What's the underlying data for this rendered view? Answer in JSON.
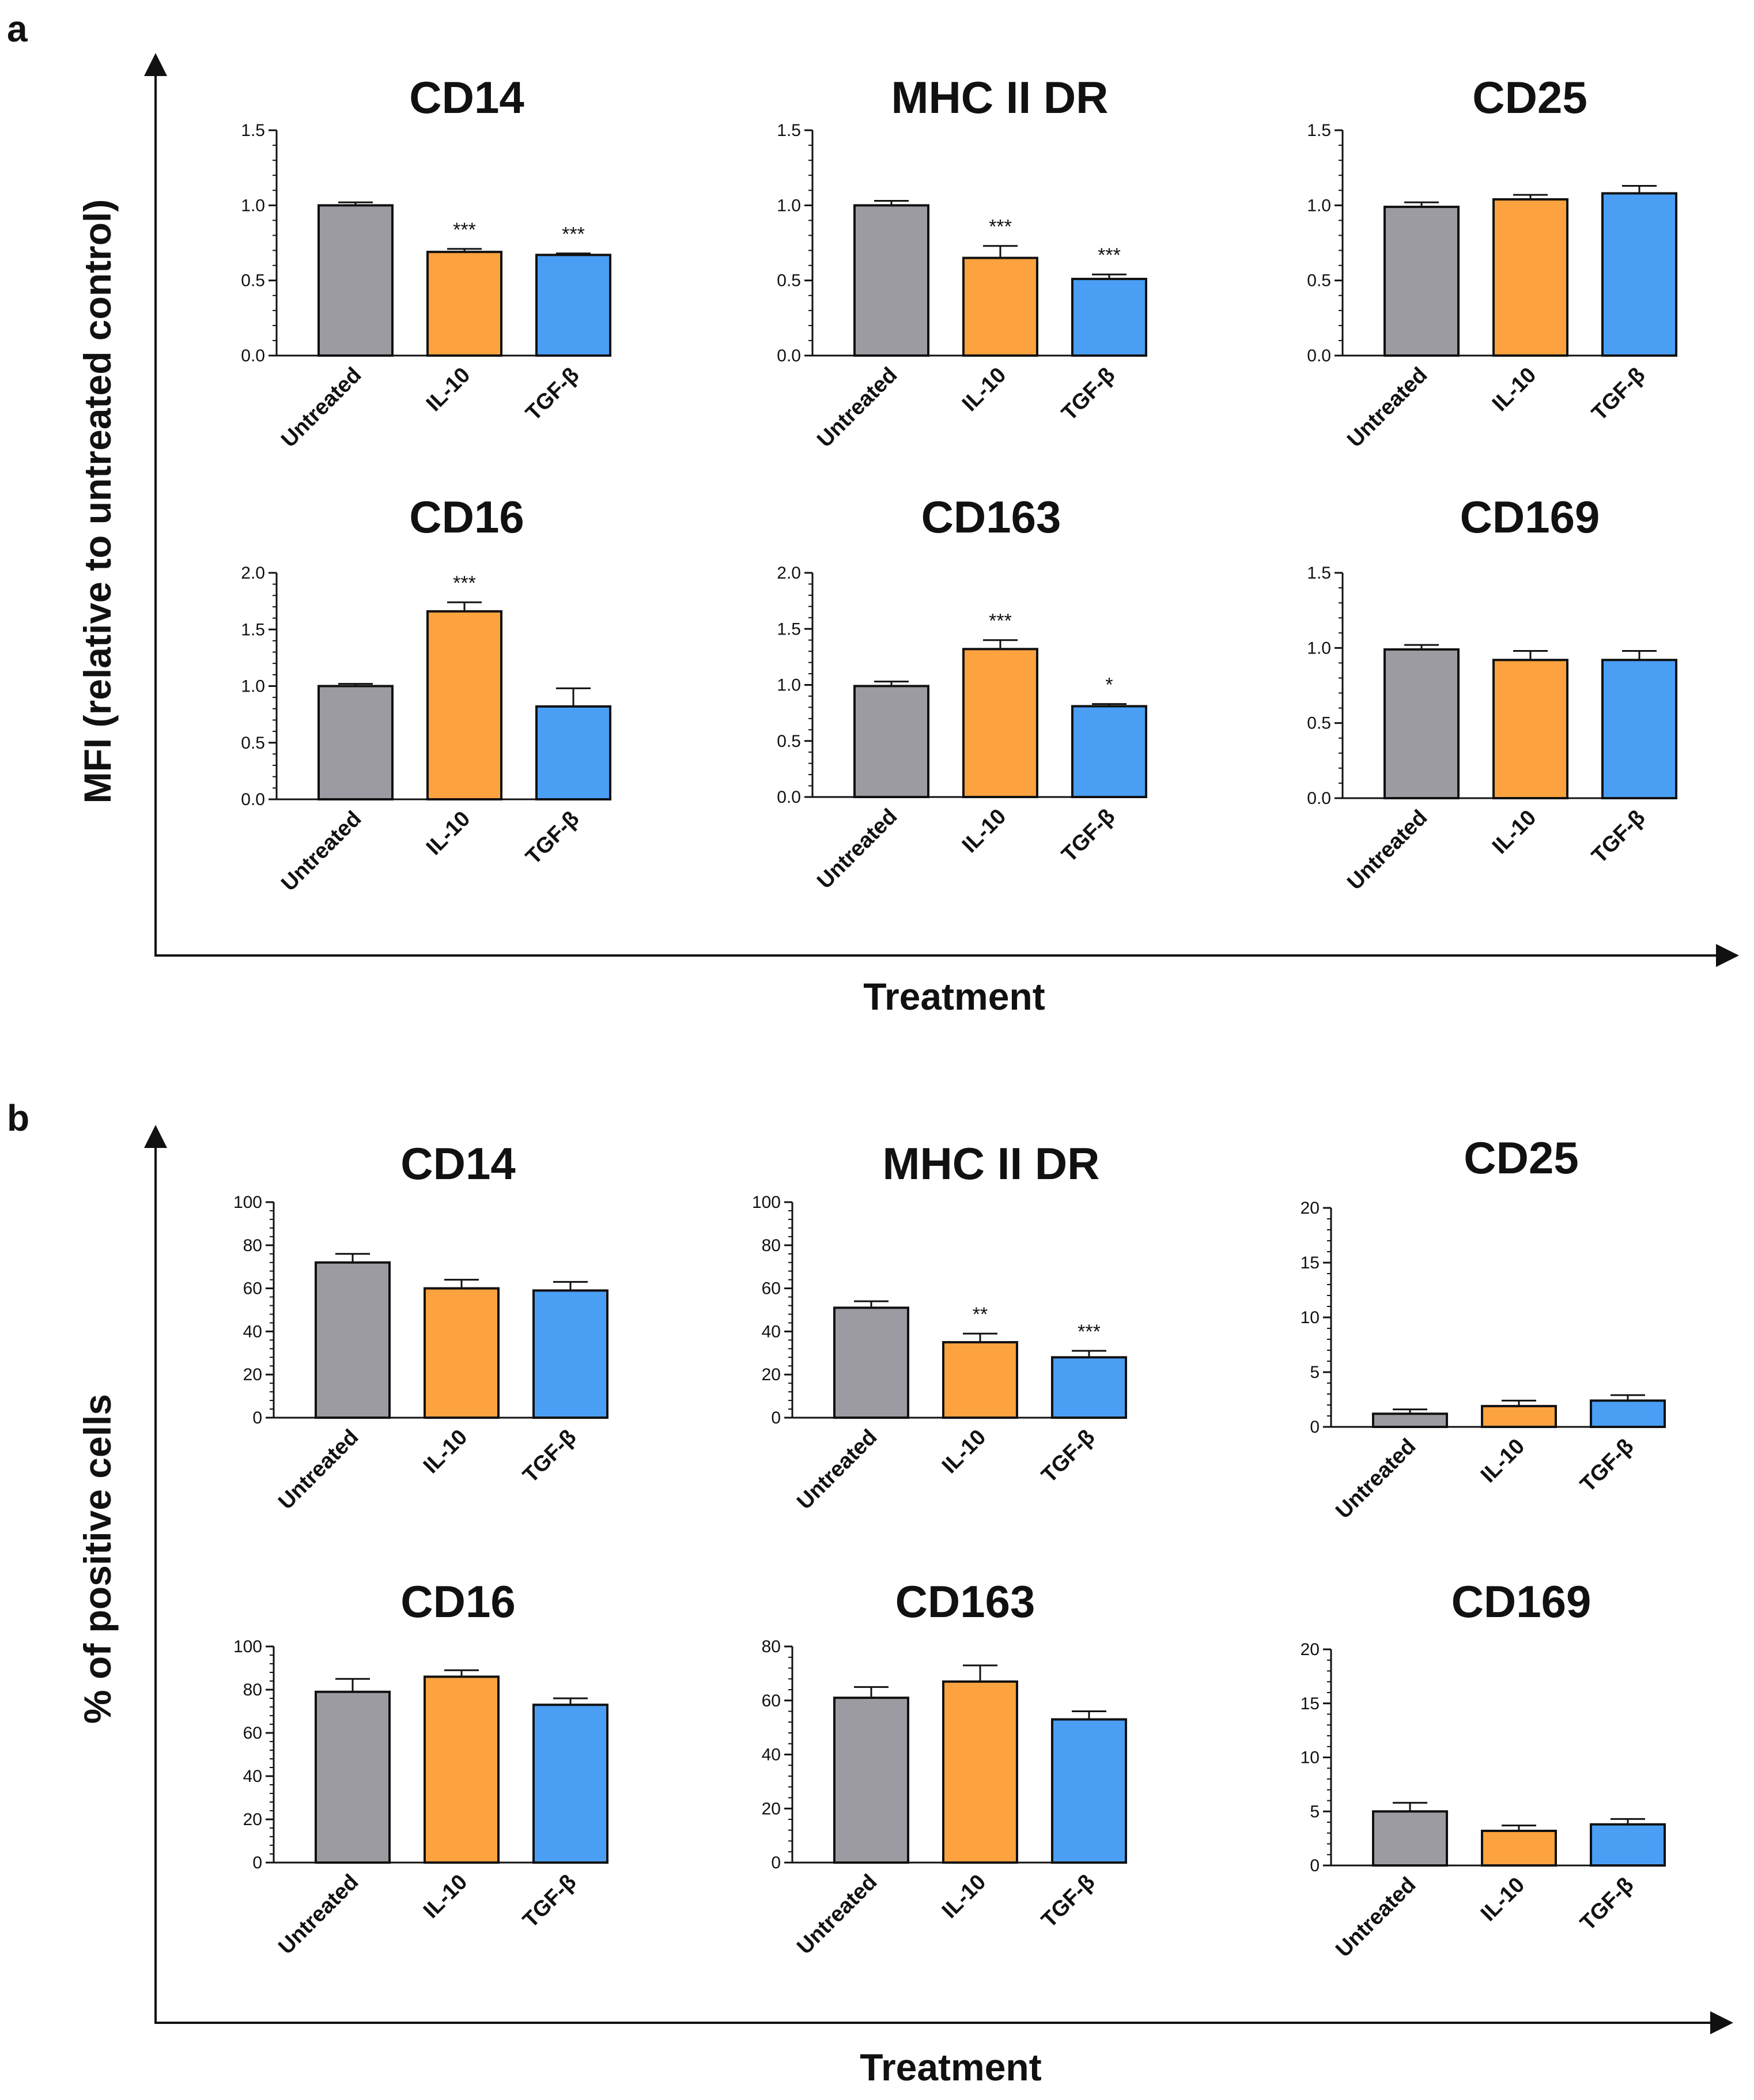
{
  "figure": {
    "panels": [
      {
        "letter": "a",
        "ylabel": "MFI (relative to untreated control)",
        "xlabel": "Treatment"
      },
      {
        "letter": "b",
        "ylabel": "% of positive cells",
        "xlabel": "Treatment"
      }
    ]
  },
  "colors": {
    "untreated": "#9c9ba2",
    "il10": "#fca23e",
    "tgfb": "#4a9ff5",
    "axis": "#111111"
  },
  "chart_data": [
    {
      "type": "bar",
      "panel": "a",
      "title": "CD14",
      "categories": [
        "Untreated",
        "IL-10",
        "TGF-β"
      ],
      "values": [
        1.0,
        0.69,
        0.67
      ],
      "errors": [
        0.02,
        0.02,
        0.01
      ],
      "significance": [
        "",
        "***",
        "***"
      ],
      "ylim": [
        0,
        1.5
      ],
      "yticks": [
        0,
        0.5,
        1.0,
        1.5
      ],
      "ytick_labels": [
        "0.0",
        "0.5",
        "1.0",
        "1.5"
      ],
      "xlabel": "Treatment",
      "ylabel": "MFI (relative to untreated control)"
    },
    {
      "type": "bar",
      "panel": "a",
      "title": "MHC II DR",
      "categories": [
        "Untreated",
        "IL-10",
        "TGF-β"
      ],
      "values": [
        1.0,
        0.65,
        0.51
      ],
      "errors": [
        0.03,
        0.08,
        0.03
      ],
      "significance": [
        "",
        "***",
        "***"
      ],
      "ylim": [
        0,
        1.5
      ],
      "yticks": [
        0,
        0.5,
        1.0,
        1.5
      ],
      "ytick_labels": [
        "0.0",
        "0.5",
        "1.0",
        "1.5"
      ],
      "xlabel": "Treatment",
      "ylabel": "MFI (relative to untreated control)"
    },
    {
      "type": "bar",
      "panel": "a",
      "title": "CD25",
      "categories": [
        "Untreated",
        "IL-10",
        "TGF-β"
      ],
      "values": [
        0.99,
        1.04,
        1.08
      ],
      "errors": [
        0.03,
        0.03,
        0.05
      ],
      "significance": [
        "",
        "",
        ""
      ],
      "ylim": [
        0,
        1.5
      ],
      "yticks": [
        0,
        0.5,
        1.0,
        1.5
      ],
      "ytick_labels": [
        "0.0",
        "0.5",
        "1.0",
        "1.5"
      ],
      "xlabel": "Treatment",
      "ylabel": "MFI (relative to untreated control)"
    },
    {
      "type": "bar",
      "panel": "a",
      "title": "CD16",
      "categories": [
        "Untreated",
        "IL-10",
        "TGF-β"
      ],
      "values": [
        1.0,
        1.66,
        0.82
      ],
      "errors": [
        0.02,
        0.08,
        0.16
      ],
      "significance": [
        "",
        "***",
        ""
      ],
      "ylim": [
        0,
        2.0
      ],
      "yticks": [
        0,
        0.5,
        1.0,
        1.5,
        2.0
      ],
      "ytick_labels": [
        "0.0",
        "0.5",
        "1.0",
        "1.5",
        "2.0"
      ],
      "xlabel": "Treatment",
      "ylabel": "MFI (relative to untreated control)"
    },
    {
      "type": "bar",
      "panel": "a",
      "title": "CD163",
      "categories": [
        "Untreated",
        "IL-10",
        "TGF-β"
      ],
      "values": [
        0.99,
        1.32,
        0.81
      ],
      "errors": [
        0.04,
        0.08,
        0.02
      ],
      "significance": [
        "",
        "***",
        "*"
      ],
      "ylim": [
        0,
        2.0
      ],
      "yticks": [
        0,
        0.5,
        1.0,
        1.5,
        2.0
      ],
      "ytick_labels": [
        "0.0",
        "0.5",
        "1.0",
        "1.5",
        "2.0"
      ],
      "xlabel": "Treatment",
      "ylabel": "MFI (relative to untreated control)"
    },
    {
      "type": "bar",
      "panel": "a",
      "title": "CD169",
      "categories": [
        "Untreated",
        "IL-10",
        "TGF-β"
      ],
      "values": [
        0.99,
        0.92,
        0.92
      ],
      "errors": [
        0.03,
        0.06,
        0.06
      ],
      "significance": [
        "",
        "",
        ""
      ],
      "ylim": [
        0,
        1.5
      ],
      "yticks": [
        0,
        0.5,
        1.0,
        1.5
      ],
      "ytick_labels": [
        "0.0",
        "0.5",
        "1.0",
        "1.5"
      ],
      "xlabel": "Treatment",
      "ylabel": "MFI (relative to untreated control)"
    },
    {
      "type": "bar",
      "panel": "b",
      "title": "CD14",
      "categories": [
        "Untreated",
        "IL-10",
        "TGF-β"
      ],
      "values": [
        72,
        60,
        59
      ],
      "errors": [
        4,
        4,
        4
      ],
      "significance": [
        "",
        "",
        ""
      ],
      "ylim": [
        0,
        100
      ],
      "yticks": [
        0,
        20,
        40,
        60,
        80,
        100
      ],
      "ytick_labels": [
        "0",
        "20",
        "40",
        "60",
        "80",
        "100"
      ],
      "xlabel": "Treatment",
      "ylabel": "% of positive cells"
    },
    {
      "type": "bar",
      "panel": "b",
      "title": "MHC II DR",
      "categories": [
        "Untreated",
        "IL-10",
        "TGF-β"
      ],
      "values": [
        51,
        35,
        28
      ],
      "errors": [
        3,
        4,
        3
      ],
      "significance": [
        "",
        "**",
        "***"
      ],
      "ylim": [
        0,
        100
      ],
      "yticks": [
        0,
        20,
        40,
        60,
        80,
        100
      ],
      "ytick_labels": [
        "0",
        "20",
        "40",
        "60",
        "80",
        "100"
      ],
      "xlabel": "Treatment",
      "ylabel": "% of positive cells"
    },
    {
      "type": "bar",
      "panel": "b",
      "title": "CD25",
      "categories": [
        "Untreated",
        "IL-10",
        "TGF-β"
      ],
      "values": [
        1.2,
        1.9,
        2.4
      ],
      "errors": [
        0.4,
        0.5,
        0.5
      ],
      "significance": [
        "",
        "",
        ""
      ],
      "ylim": [
        0,
        20
      ],
      "yticks": [
        0,
        5,
        10,
        15,
        20
      ],
      "ytick_labels": [
        "0",
        "5",
        "10",
        "15",
        "20"
      ],
      "xlabel": "Treatment",
      "ylabel": "% of positive cells"
    },
    {
      "type": "bar",
      "panel": "b",
      "title": "CD16",
      "categories": [
        "Untreated",
        "IL-10",
        "TGF-β"
      ],
      "values": [
        79,
        86,
        73
      ],
      "errors": [
        6,
        3,
        3
      ],
      "significance": [
        "",
        "",
        ""
      ],
      "ylim": [
        0,
        100
      ],
      "yticks": [
        0,
        20,
        40,
        60,
        80,
        100
      ],
      "ytick_labels": [
        "0",
        "20",
        "40",
        "60",
        "80",
        "100"
      ],
      "xlabel": "Treatment",
      "ylabel": "% of positive cells"
    },
    {
      "type": "bar",
      "panel": "b",
      "title": "CD163",
      "categories": [
        "Untreated",
        "IL-10",
        "TGF-β"
      ],
      "values": [
        61,
        67,
        53
      ],
      "errors": [
        4,
        6,
        3
      ],
      "significance": [
        "",
        "",
        ""
      ],
      "ylim": [
        0,
        80
      ],
      "yticks": [
        0,
        20,
        40,
        60,
        80
      ],
      "ytick_labels": [
        "0",
        "20",
        "40",
        "60",
        "80"
      ],
      "xlabel": "Treatment",
      "ylabel": "% of positive cells"
    },
    {
      "type": "bar",
      "panel": "b",
      "title": "CD169",
      "categories": [
        "Untreated",
        "IL-10",
        "TGF-β"
      ],
      "values": [
        5.0,
        3.2,
        3.8
      ],
      "errors": [
        0.8,
        0.5,
        0.5
      ],
      "significance": [
        "",
        "",
        ""
      ],
      "ylim": [
        0,
        20
      ],
      "yticks": [
        0,
        5,
        10,
        15,
        20
      ],
      "ytick_labels": [
        "0",
        "5",
        "10",
        "15",
        "20"
      ],
      "xlabel": "Treatment",
      "ylabel": "% of positive cells"
    }
  ]
}
